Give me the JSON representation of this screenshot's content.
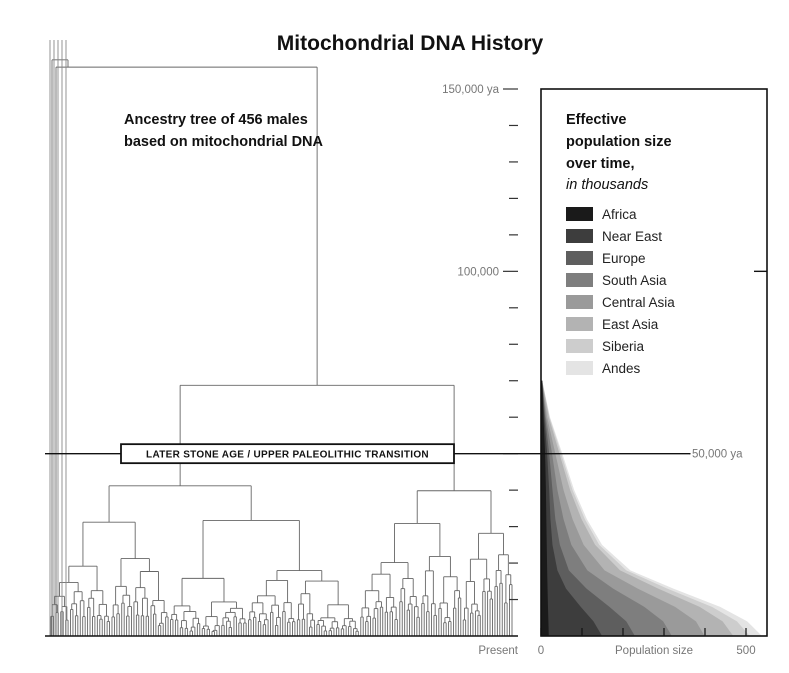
{
  "chart_data": [
    {
      "type": "dendrogram",
      "title": "Mitochondrial DNA History",
      "subtitle_line1": "Ancestry tree of 456 males",
      "subtitle_line2": "based on mitochondrial DNA",
      "leaf_count": 456,
      "time_axis": {
        "unit": "years ago",
        "range": [
          0,
          165000
        ],
        "major_ticks": [
          {
            "value": 150000,
            "label": "150,000 ya"
          },
          {
            "value": 100000,
            "label": "100,000"
          },
          {
            "value": 50000,
            "label": "50,000 ya"
          }
        ],
        "minor_step": 10000,
        "bottom_label": "Present"
      },
      "event": {
        "label": "LATER STONE AGE / UPPER PALEOLITHIC TRANSITION",
        "time_ya": 50000
      }
    },
    {
      "type": "area",
      "stacked": true,
      "orientation": "vertical-time",
      "legend_title_line1": "Effective",
      "legend_title_line2": "population size",
      "legend_title_line3": "over time,",
      "legend_title_line4": "in thousands",
      "x_axis": {
        "label": "Population size",
        "min_label": "0",
        "max_label": "500",
        "range": [
          0,
          500
        ],
        "ticks": [
          0,
          100,
          200,
          300,
          400,
          500
        ]
      },
      "time_points_ya": [
        0,
        4000,
        8000,
        13000,
        18000,
        25000,
        32000,
        40000,
        50000,
        60000,
        70000
      ],
      "series": [
        {
          "name": "Africa",
          "color": "#1a1a1a",
          "values": [
            19,
            18,
            17,
            16,
            15,
            14,
            13,
            12,
            10,
            6,
            3
          ]
        },
        {
          "name": "Near East",
          "color": "#3d3d3d",
          "values": [
            130,
            110,
            80,
            45,
            25,
            14,
            10,
            8,
            5,
            2,
            0
          ]
        },
        {
          "name": "Europe",
          "color": "#5e5e5e",
          "values": [
            80,
            80,
            70,
            50,
            28,
            18,
            12,
            8,
            5,
            2,
            0
          ]
        },
        {
          "name": "South Asia",
          "color": "#7e7e7e",
          "values": [
            90,
            90,
            85,
            65,
            45,
            28,
            20,
            12,
            7,
            2,
            0
          ]
        },
        {
          "name": "Central Asia",
          "color": "#9a9a9a",
          "values": [
            80,
            80,
            75,
            60,
            42,
            30,
            22,
            15,
            8,
            3,
            0
          ]
        },
        {
          "name": "East Asia",
          "color": "#b3b3b3",
          "values": [
            70,
            65,
            60,
            50,
            38,
            28,
            22,
            16,
            10,
            4,
            0
          ]
        },
        {
          "name": "Siberia",
          "color": "#cdcdcd",
          "values": [
            40,
            35,
            30,
            22,
            15,
            10,
            8,
            6,
            4,
            2,
            0
          ]
        },
        {
          "name": "Andes",
          "color": "#e4e4e4",
          "values": [
            30,
            25,
            20,
            15,
            10,
            7,
            5,
            4,
            3,
            1,
            0
          ]
        }
      ]
    }
  ]
}
